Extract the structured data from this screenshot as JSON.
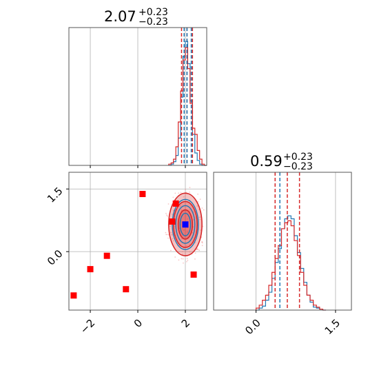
{
  "colors": {
    "blue": "#1f77b4",
    "red": "#d62728",
    "marker_red": "#ff0000",
    "marker_blue": "#0000ff",
    "grid": "#b0b0b0",
    "axes": "#555555"
  },
  "titles": [
    {
      "value": "2.07",
      "plus": "+0.23",
      "minus": "−0.23"
    },
    {
      "value": "0.59",
      "plus": "+0.23",
      "minus": "−0.23"
    }
  ],
  "chart_data": [
    {
      "type": "histogram",
      "panel": "top-left",
      "xlim": [
        -2.9,
        2.9
      ],
      "grid": true,
      "bins": [
        1.3,
        1.4,
        1.5,
        1.6,
        1.7,
        1.8,
        1.9,
        2.0,
        2.1,
        2.2,
        2.3,
        2.4,
        2.5,
        2.6,
        2.7,
        2.8
      ],
      "series": [
        {
          "color": "blue",
          "counts": [
            0,
            0.01,
            0.03,
            0.08,
            0.22,
            0.55,
            0.88,
            1.0,
            0.82,
            0.52,
            0.25,
            0.1,
            0.04,
            0.01,
            0,
            0
          ]
        },
        {
          "color": "red",
          "counts": [
            0.01,
            0.02,
            0.05,
            0.15,
            0.35,
            0.6,
            0.85,
            0.95,
            0.78,
            0.5,
            0.3,
            0.25,
            0.12,
            0.05,
            0.01,
            0
          ]
        }
      ],
      "quantile_lines": [
        {
          "color": "red",
          "x": [
            1.84,
            2.07,
            2.3
          ]
        },
        {
          "color": "blue",
          "x": [
            1.95,
            2.07,
            2.25
          ]
        }
      ]
    },
    {
      "type": "contour",
      "panel": "bottom-left",
      "xlim": [
        -2.9,
        2.9
      ],
      "ylim": [
        -1.4,
        1.9
      ],
      "xticks": [
        "−2",
        "0",
        "2"
      ],
      "xtick_values": [
        -2,
        0,
        2
      ],
      "yticks": [
        "0.0",
        "1.5"
      ],
      "ytick_values": [
        0,
        1.5
      ],
      "grid": true,
      "center": {
        "x": 2.0,
        "y": 0.65
      },
      "contours": [
        {
          "color": "red",
          "rx": [
            0.7,
            0.5,
            0.3
          ],
          "ry": [
            0.75,
            0.55,
            0.35
          ],
          "filled": true
        },
        {
          "color": "blue",
          "rx": [
            0.55,
            0.4,
            0.22
          ],
          "ry": [
            0.6,
            0.45,
            0.27
          ],
          "filled": false
        }
      ],
      "markers": [
        {
          "x": 0.2,
          "y": 1.38
        },
        {
          "x": 1.6,
          "y": 1.15
        },
        {
          "x": 1.45,
          "y": 0.72
        },
        {
          "x": -1.3,
          "y": -0.1
        },
        {
          "x": -2.0,
          "y": -0.42
        },
        {
          "x": -2.7,
          "y": -1.05
        },
        {
          "x": -0.5,
          "y": -0.9
        },
        {
          "x": 2.35,
          "y": -0.55
        }
      ],
      "truth": {
        "x": 2.0,
        "y": 0.65
      }
    },
    {
      "type": "histogram",
      "panel": "bottom-right",
      "xlim": [
        -0.8,
        1.8
      ],
      "xticks": [
        "0.0",
        "1.5"
      ],
      "xtick_values": [
        0,
        1.5
      ],
      "grid": true,
      "bins": [
        0.0,
        0.06,
        0.12,
        0.18,
        0.24,
        0.3,
        0.36,
        0.42,
        0.48,
        0.54,
        0.6,
        0.66,
        0.72,
        0.78,
        0.84,
        0.9,
        0.96,
        1.02,
        1.08,
        1.14,
        1.2,
        1.26
      ],
      "series": [
        {
          "color": "blue",
          "counts": [
            0,
            0.02,
            0.04,
            0.1,
            0.18,
            0.32,
            0.48,
            0.62,
            0.82,
            0.92,
            0.95,
            0.92,
            0.75,
            0.58,
            0.42,
            0.28,
            0.15,
            0.08,
            0.03,
            0.02,
            0.01,
            0
          ]
        },
        {
          "color": "red",
          "counts": [
            0.02,
            0.05,
            0.1,
            0.15,
            0.25,
            0.38,
            0.52,
            0.65,
            0.82,
            0.88,
            0.9,
            0.85,
            0.7,
            0.55,
            0.38,
            0.25,
            0.15,
            0.1,
            0.05,
            0.03,
            0.01,
            0
          ]
        }
      ],
      "quantile_lines": [
        {
          "color": "red",
          "x": [
            0.36,
            0.59,
            0.82
          ]
        },
        {
          "color": "blue",
          "x": [
            0.45
          ]
        }
      ]
    }
  ]
}
